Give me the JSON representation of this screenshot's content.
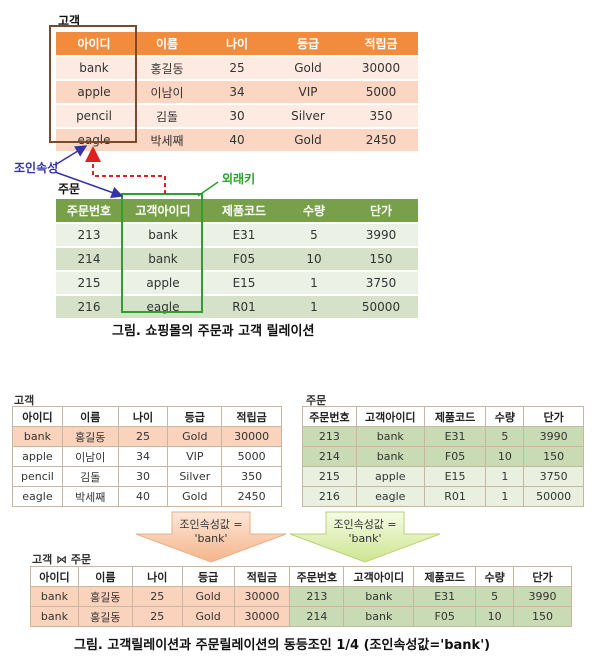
{
  "top": {
    "customer_label": "고객",
    "order_label": "주문",
    "join_attr_label": "조인속성",
    "fk_label": "외래키",
    "caption": "그림.  쇼핑몰의 주문과 고객 릴레이션",
    "customer": {
      "headers": [
        "아이디",
        "이름",
        "나이",
        "등급",
        "적립금"
      ],
      "rows": [
        [
          "bank",
          "홍길동",
          "25",
          "Gold",
          "30000"
        ],
        [
          "apple",
          "이남이",
          "34",
          "VIP",
          "5000"
        ],
        [
          "pencil",
          "김돌",
          "30",
          "Silver",
          "350"
        ],
        [
          "eagle",
          "박세째",
          "40",
          "Gold",
          "2450"
        ]
      ]
    },
    "order": {
      "headers": [
        "주문번호",
        "고객아이디",
        "제품코드",
        "수량",
        "단가"
      ],
      "rows": [
        [
          "213",
          "bank",
          "E31",
          "5",
          "3990"
        ],
        [
          "214",
          "bank",
          "F05",
          "10",
          "150"
        ],
        [
          "215",
          "apple",
          "E15",
          "1",
          "3750"
        ],
        [
          "216",
          "eagle",
          "R01",
          "1",
          "50000"
        ]
      ]
    }
  },
  "bottom": {
    "customer_label": "고객",
    "order_label": "주문",
    "join_label": "고객 ⋈ 주문",
    "arrow_left": [
      "조인속성값 =",
      "'bank'"
    ],
    "arrow_right": [
      "조인속성값 =",
      "'bank'"
    ],
    "caption": "그림. 고객릴레이션과 주문릴레이션의 동등조인 1/4 (조인속성값='bank')",
    "customer": {
      "headers": [
        "아이디",
        "이름",
        "나이",
        "등급",
        "적립금"
      ],
      "rows": [
        [
          "bank",
          "홍길동",
          "25",
          "Gold",
          "30000"
        ],
        [
          "apple",
          "이남이",
          "34",
          "VIP",
          "5000"
        ],
        [
          "pencil",
          "김돌",
          "30",
          "Silver",
          "350"
        ],
        [
          "eagle",
          "박세째",
          "40",
          "Gold",
          "2450"
        ]
      ]
    },
    "order": {
      "headers": [
        "주문번호",
        "고객아이디",
        "제품코드",
        "수량",
        "단가"
      ],
      "rows": [
        [
          "213",
          "bank",
          "E31",
          "5",
          "3990"
        ],
        [
          "214",
          "bank",
          "F05",
          "10",
          "150"
        ],
        [
          "215",
          "apple",
          "E15",
          "1",
          "3750"
        ],
        [
          "216",
          "eagle",
          "R01",
          "1",
          "50000"
        ]
      ]
    },
    "result": {
      "headers": [
        "아이디",
        "이름",
        "나이",
        "등급",
        "적립금",
        "주문번호",
        "고객아이디",
        "제품코드",
        "수량",
        "단가"
      ],
      "rows": [
        [
          "bank",
          "홍길동",
          "25",
          "Gold",
          "30000",
          "213",
          "bank",
          "E31",
          "5",
          "3990"
        ],
        [
          "bank",
          "홍길동",
          "25",
          "Gold",
          "30000",
          "214",
          "bank",
          "F05",
          "10",
          "150"
        ]
      ]
    }
  },
  "colors": {
    "customer_header": "#f28c3c",
    "order_header": "#78a04a",
    "join_attr_blue": "#3333aa",
    "fk_green": "#2ca02c",
    "fk_arrow_red": "#e02020"
  }
}
